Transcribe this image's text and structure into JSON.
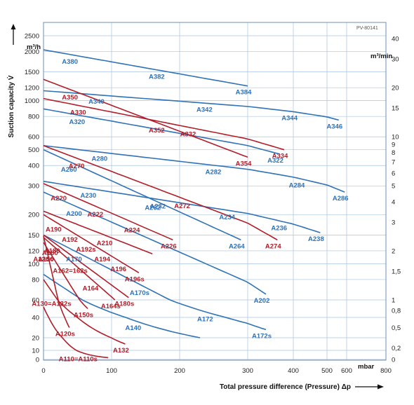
{
  "colors": {
    "blue": "#2f72b7",
    "red": "#b11d28",
    "grid": "#a9c4df",
    "frame": "#6f8fb5"
  },
  "chart_data": {
    "type": "line",
    "reference": "PV-80141",
    "title": "",
    "xlabel": "Total pressure difference (Pressure) Δp",
    "xunit": "mbar",
    "ylabel": "Suction capacity V̇",
    "yunit_left": "m³/h",
    "yunit_right": "m³/min",
    "xlim": [
      0,
      800
    ],
    "x_ticks": [
      "0",
      "100",
      "200",
      "300",
      "400",
      "500",
      "600",
      "800"
    ],
    "y_ticks_left": [
      "0",
      "10",
      "20",
      "40",
      "60",
      "80",
      "100",
      "120",
      "150",
      "200",
      "300",
      "400",
      "500",
      "600",
      "800",
      "1000",
      "1200",
      "1500",
      "2000",
      "2500"
    ],
    "y_ticks_right": [
      "0",
      "0,2",
      "0,5",
      "0,8",
      "1",
      "1,5",
      "2",
      "3",
      "4",
      "5",
      "6",
      "7",
      "8",
      "9",
      "10",
      "15",
      "20",
      "30",
      "40"
    ],
    "series": [
      {
        "name": "A380",
        "color": "blue",
        "x": [
          0,
          300
        ],
        "y": [
          2050,
          1230
        ],
        "labels": [
          "A380",
          "A382",
          "A384"
        ]
      },
      {
        "name": "A340",
        "color": "blue",
        "x": [
          0,
          560
        ],
        "y": [
          1150,
          760
        ],
        "labels": [
          "A340",
          "A342",
          "A344",
          "A346"
        ]
      },
      {
        "name": "A320",
        "color": "blue",
        "x": [
          0,
          370
        ],
        "y": [
          890,
          470
        ],
        "labels": [
          "A320",
          "A322"
        ]
      },
      {
        "name": "A280",
        "color": "blue",
        "x": [
          0,
          590
        ],
        "y": [
          530,
          275
        ],
        "labels": [
          "A280",
          "A282",
          "A284",
          "A286"
        ]
      },
      {
        "name": "A260",
        "color": "blue",
        "x": [
          0,
          290
        ],
        "y": [
          500,
          140
        ],
        "labels": [
          "A260",
          "A262",
          "A264"
        ]
      },
      {
        "name": "A230",
        "color": "blue",
        "x": [
          0,
          480
        ],
        "y": [
          320,
          155
        ],
        "labels": [
          "A230",
          "A232",
          "A234",
          "A236",
          "A238"
        ]
      },
      {
        "name": "A200",
        "color": "blue",
        "x": [
          0,
          340
        ],
        "y": [
          275,
          65
        ],
        "labels": [
          "A200",
          "A202"
        ]
      },
      {
        "name": "A170",
        "color": "blue",
        "x": [
          0,
          340
        ],
        "y": [
          150,
          28
        ],
        "labels": [
          "A170",
          "A170s",
          "A172",
          "A172s"
        ]
      },
      {
        "name": "A140",
        "color": "blue",
        "x": [
          0,
          230
        ],
        "y": [
          86,
          20
        ],
        "labels": [
          "A140"
        ]
      },
      {
        "name": "A350",
        "color": "red",
        "x": [
          0,
          300
        ],
        "y": [
          1350,
          450
        ],
        "labels": [
          "A350",
          "A352",
          "A354"
        ]
      },
      {
        "name": "A330",
        "color": "red",
        "x": [
          0,
          380
        ],
        "y": [
          1030,
          500
        ],
        "labels": [
          "A330",
          "A332",
          "A334"
        ]
      },
      {
        "name": "A270",
        "color": "red",
        "x": [
          0,
          365
        ],
        "y": [
          530,
          140
        ],
        "labels": [
          "A270",
          "A272",
          "A274"
        ]
      },
      {
        "name": "A220",
        "color": "red",
        "x": [
          0,
          190
        ],
        "y": [
          310,
          140
        ],
        "labels": [
          "A220",
          "A222",
          "A224",
          "A226"
        ]
      },
      {
        "name": "A210",
        "color": "red",
        "x": [
          0,
          160
        ],
        "y": [
          210,
          115
        ],
        "labels": [
          "A210"
        ]
      },
      {
        "name": "A190",
        "color": "red",
        "x": [
          0,
          140
        ],
        "y": [
          200,
          88
        ],
        "labels": [
          "A190",
          "A192",
          "A192s",
          "A194",
          "A196",
          "A196s"
        ]
      },
      {
        "name": "A180",
        "color": "red",
        "x": [
          0,
          125
        ],
        "y": [
          150,
          62
        ],
        "labels": [
          "A180",
          "A180s"
        ]
      },
      {
        "name": "A160",
        "color": "red",
        "x": [
          0,
          105
        ],
        "y": [
          145,
          60
        ],
        "labels": [
          "A160",
          "A162=162s",
          "A164",
          "A164s"
        ]
      },
      {
        "name": "A150",
        "color": "red",
        "x": [
          0,
          65
        ],
        "y": [
          135,
          50
        ],
        "labels": [
          "A150",
          "A150s"
        ]
      },
      {
        "name": "A130",
        "color": "red",
        "x": [
          0,
          120
        ],
        "y": [
          80,
          15
        ],
        "labels": [
          "A130=A132s",
          "A132"
        ]
      },
      {
        "name": "A120",
        "color": "red",
        "x": [
          0,
          38
        ],
        "y": [
          148,
          30
        ],
        "labels": [
          "A120=",
          "A120s"
        ]
      },
      {
        "name": "A110",
        "color": "red",
        "x": [
          0,
          95
        ],
        "y": [
          52,
          2
        ],
        "labels": [
          "A110=A110s"
        ]
      }
    ]
  }
}
